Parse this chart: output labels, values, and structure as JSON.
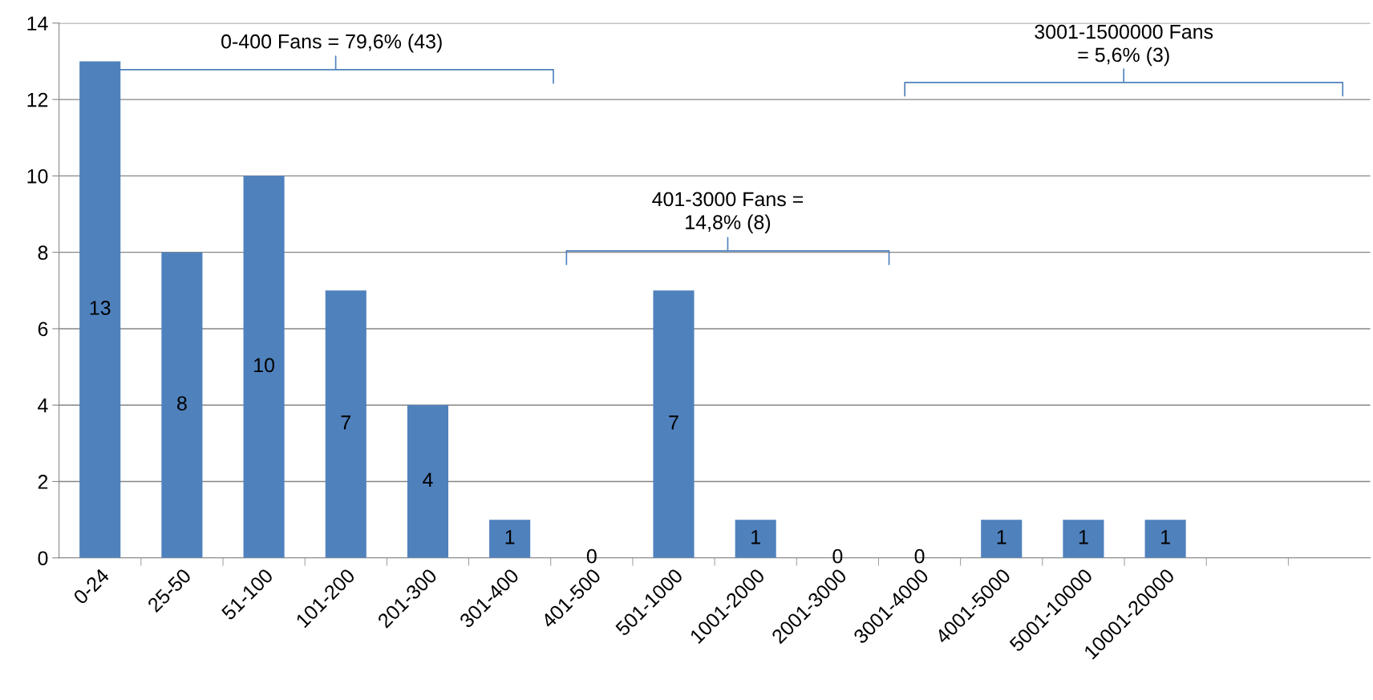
{
  "chart_data": {
    "type": "bar",
    "categories": [
      "0-24",
      "25-50",
      "51-100",
      "101-200",
      "201-300",
      "301-400",
      "401-500",
      "501-1000",
      "1001-2000",
      "2001-3000",
      "3001-4000",
      "4001-5000",
      "5001-10000",
      "10001-20000",
      null,
      null
    ],
    "values": [
      13,
      8,
      10,
      7,
      4,
      1,
      0,
      7,
      1,
      0,
      0,
      1,
      1,
      1,
      null,
      null
    ],
    "color": "#4f81bd",
    "ylim": [
      0,
      14
    ],
    "yticks": [
      0,
      2,
      4,
      6,
      8,
      10,
      12,
      14
    ],
    "grid": "y",
    "data_labels": true,
    "annotations": [
      "0-400 Fans = 79,6% (43)",
      "401-3000 Fans =\n14,8% (8)",
      "3001-1500000 Fans\n= 5,6% (3)"
    ]
  }
}
